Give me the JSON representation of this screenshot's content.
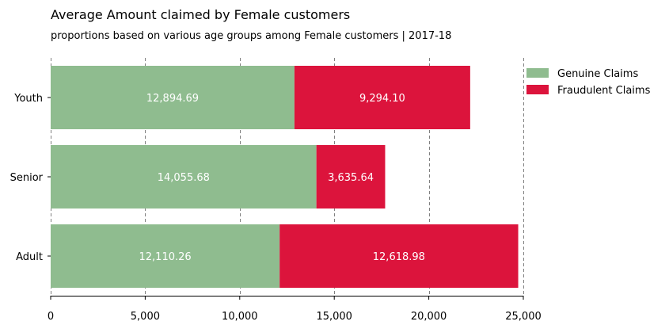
{
  "chart_data": {
    "type": "bar",
    "orientation": "horizontal",
    "stacked": true,
    "title": "Average Amount claimed by Female customers",
    "subtitle": "proportions based on various age groups among Female customers | 2017-18",
    "xlabel": "",
    "ylabel": "",
    "categories": [
      "Adult",
      "Senior",
      "Youth"
    ],
    "series": [
      {
        "name": "Genuine Claims",
        "color": "#8fbc8f",
        "values": [
          12110.26,
          14055.68,
          12894.69
        ],
        "labels": [
          "12,110.26",
          "14,055.68",
          "12,894.69"
        ]
      },
      {
        "name": "Fraudulent Claims",
        "color": "#dc143c",
        "values": [
          12618.98,
          3635.64,
          9294.1
        ],
        "labels": [
          "12,618.98",
          "3,635.64",
          "9,294.10"
        ]
      }
    ],
    "xlim": [
      0,
      25000
    ],
    "xticks": [
      0,
      5000,
      10000,
      15000,
      20000,
      25000
    ],
    "xtick_labels": [
      "0",
      "5,000",
      "10,000",
      "15,000",
      "20,000",
      "25,000"
    ],
    "grid": "x-dashed",
    "legend_position": "top-right"
  }
}
